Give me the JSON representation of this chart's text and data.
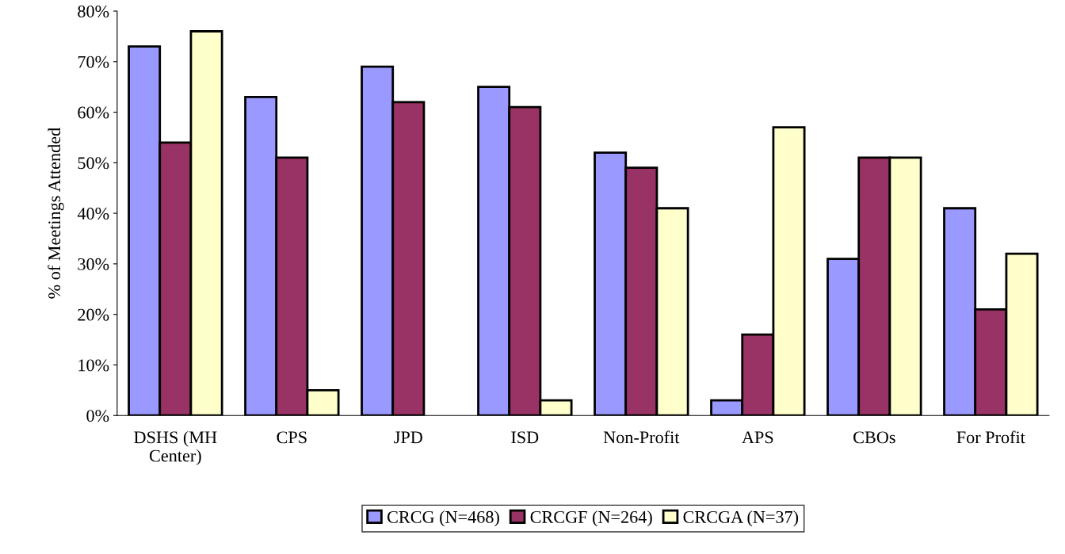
{
  "chart_data": {
    "type": "bar",
    "ylabel": "% of Meetings Attended",
    "categories": [
      "DSHS (MH Center)",
      "CPS",
      "JPD",
      "ISD",
      "Non-Profit",
      "APS",
      "CBOs",
      "For Profit"
    ],
    "series": [
      {
        "name": "CRCG (N=468)",
        "color": "#9999ff",
        "values": [
          73,
          63,
          69,
          65,
          52,
          3,
          31,
          41
        ]
      },
      {
        "name": "CRCGF (N=264)",
        "color": "#993366",
        "values": [
          54,
          51,
          62,
          61,
          49,
          16,
          51,
          21
        ]
      },
      {
        "name": "CRCGA (N=37)",
        "color": "#ffffcc",
        "values": [
          76,
          5,
          null,
          3,
          41,
          57,
          51,
          32
        ]
      }
    ],
    "ylim": [
      0,
      80
    ],
    "yticks": [
      {
        "value": 0,
        "label": "0%"
      },
      {
        "value": 10,
        "label": "10%"
      },
      {
        "value": 20,
        "label": "20%"
      },
      {
        "value": 30,
        "label": "30%"
      },
      {
        "value": 40,
        "label": "40%"
      },
      {
        "value": 50,
        "label": "50%"
      },
      {
        "value": 60,
        "label": "60%"
      },
      {
        "value": 70,
        "label": "70%"
      },
      {
        "value": 80,
        "label": "80%"
      }
    ],
    "grid": false,
    "legend": "bottom"
  }
}
